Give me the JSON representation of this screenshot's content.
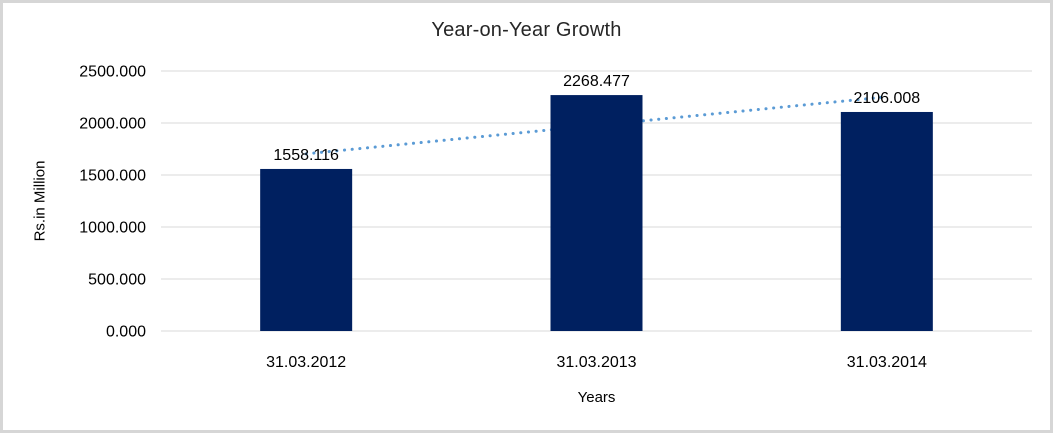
{
  "chart_data": {
    "type": "bar",
    "title": "Year-on-Year Growth",
    "xlabel": "Years",
    "ylabel": "Rs.in Million",
    "categories": [
      "31.03.2012",
      "31.03.2013",
      "31.03.2014"
    ],
    "series": [
      {
        "name": "Rs.in Million",
        "values": [
          1558.116,
          2268.477,
          2106.008
        ]
      }
    ],
    "value_labels": [
      "1558.116",
      "2268.477",
      "2106.008"
    ],
    "ylim": [
      0,
      2500
    ],
    "ytick_step": 500,
    "ytick_labels": [
      "0.000",
      "500.000",
      "1000.000",
      "1500.000",
      "2000.000",
      "2500.000"
    ],
    "grid": true,
    "legend": "none",
    "trendline": {
      "type": "linear",
      "style": "dotted"
    },
    "colors": {
      "bar": "#002060",
      "trendline": "#5b9bd5",
      "gridline": "#d9d9d9",
      "frame_border": "#d6d6d6",
      "title_text": "#262626",
      "axis_text": "#000000"
    }
  }
}
